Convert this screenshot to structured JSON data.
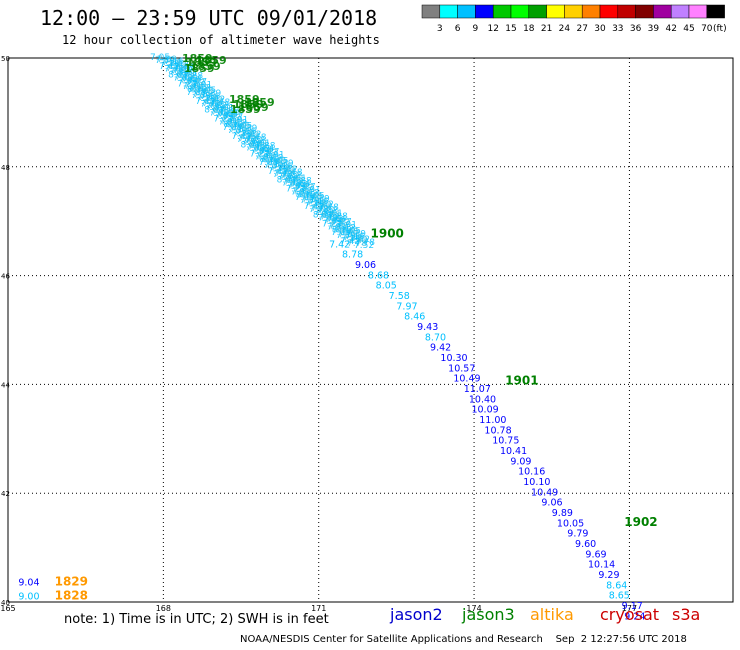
{
  "header": {
    "title": "12:00 — 23:59 UTC 09/01/2018",
    "subtitle": "12 hour collection of altimeter wave heights"
  },
  "legend": {
    "colors": [
      "#808080",
      "#00ffff",
      "#00c0ff",
      "#0000ff",
      "#00c800",
      "#00ff00",
      "#00a000",
      "#ffff00",
      "#ffd000",
      "#ff8000",
      "#ff0000",
      "#c00000",
      "#800000",
      "#a000a0",
      "#c080ff",
      "#ff80ff",
      "#000000"
    ],
    "labels": [
      "3",
      "6",
      "9",
      "12",
      "15",
      "18",
      "21",
      "24",
      "27",
      "30",
      "33",
      "36",
      "39",
      "42",
      "45",
      "70"
    ],
    "unit": "(ft)"
  },
  "notes": {
    "note": "note: 1) Time is in UTC; 2) SWH is in feet",
    "satellites": [
      {
        "name": "jason2",
        "color": "#0000cc"
      },
      {
        "name": "jason3",
        "color": "#008000"
      },
      {
        "name": "altika",
        "color": "#ff9900"
      },
      {
        "name": "cryosat",
        "color": "#cc0000"
      },
      {
        "name": "s3a",
        "color": "#cc0000"
      }
    ],
    "footer": "NOAA/NESDIS Center for Satellite Applications and Research    Sep  2 12:27:56 UTC 2018"
  },
  "chart_data": {
    "type": "scatter",
    "xlim": [
      165,
      179
    ],
    "ylim": [
      40,
      50
    ],
    "xticks": [
      "165",
      "168",
      "171",
      "174",
      "177"
    ],
    "xtick_values": [
      165,
      168,
      171,
      174,
      177
    ],
    "yticks": [
      "40",
      "42",
      "44",
      "46",
      "48",
      "50"
    ],
    "ytick_values": [
      40,
      42,
      44,
      46,
      48,
      50
    ],
    "grid": true,
    "track_times": [
      {
        "label": "1900",
        "x": 172.0,
        "y": 46.7,
        "color": "#008000"
      },
      {
        "label": "1901",
        "x": 174.6,
        "y": 44.0,
        "color": "#008000"
      },
      {
        "label": "1902",
        "x": 176.9,
        "y": 41.4,
        "color": "#008000"
      },
      {
        "label": "1829",
        "x": 165.9,
        "y": 40.3,
        "color": "#ff9900"
      },
      {
        "label": "1828",
        "x": 165.9,
        "y": 40.05,
        "color": "#ff9900"
      }
    ],
    "swh_points": [
      {
        "x": 171.2,
        "y": 46.52,
        "value": "7.42",
        "color": "#00c0ff"
      },
      {
        "x": 171.45,
        "y": 46.33,
        "value": "8.78",
        "color": "#00c0ff"
      },
      {
        "x": 171.7,
        "y": 46.14,
        "value": "9.06",
        "color": "#0000ff"
      },
      {
        "x": 171.95,
        "y": 45.95,
        "value": "8.68",
        "color": "#00c0ff"
      },
      {
        "x": 172.1,
        "y": 45.76,
        "value": "8.05",
        "color": "#00c0ff"
      },
      {
        "x": 172.35,
        "y": 45.57,
        "value": "7.58",
        "color": "#00c0ff"
      },
      {
        "x": 172.5,
        "y": 45.38,
        "value": "7.97",
        "color": "#00c0ff"
      },
      {
        "x": 172.65,
        "y": 45.19,
        "value": "8.46",
        "color": "#00c0ff"
      },
      {
        "x": 172.9,
        "y": 45.0,
        "value": "9.43",
        "color": "#0000ff"
      },
      {
        "x": 173.05,
        "y": 44.81,
        "value": "8.70",
        "color": "#00c0ff"
      },
      {
        "x": 173.15,
        "y": 44.62,
        "value": "9.42",
        "color": "#0000ff"
      },
      {
        "x": 173.35,
        "y": 44.43,
        "value": "10.30",
        "color": "#0000ff"
      },
      {
        "x": 173.5,
        "y": 44.24,
        "value": "10.57",
        "color": "#0000ff"
      },
      {
        "x": 173.6,
        "y": 44.05,
        "value": "10.49",
        "color": "#0000ff"
      },
      {
        "x": 173.8,
        "y": 43.86,
        "value": "11.07",
        "color": "#0000ff"
      },
      {
        "x": 173.9,
        "y": 43.67,
        "value": "10.40",
        "color": "#0000ff"
      },
      {
        "x": 173.95,
        "y": 43.48,
        "value": "10.09",
        "color": "#0000ff"
      },
      {
        "x": 174.1,
        "y": 43.29,
        "value": "11.00",
        "color": "#0000ff"
      },
      {
        "x": 174.2,
        "y": 43.1,
        "value": "10.78",
        "color": "#0000ff"
      },
      {
        "x": 174.35,
        "y": 42.91,
        "value": "10.75",
        "color": "#0000ff"
      },
      {
        "x": 174.5,
        "y": 42.72,
        "value": "10.41",
        "color": "#0000ff"
      },
      {
        "x": 174.7,
        "y": 42.53,
        "value": "9.09",
        "color": "#0000ff"
      },
      {
        "x": 174.85,
        "y": 42.34,
        "value": "10.16",
        "color": "#0000ff"
      },
      {
        "x": 174.95,
        "y": 42.15,
        "value": "10.10",
        "color": "#0000ff"
      },
      {
        "x": 175.1,
        "y": 41.96,
        "value": "10.49",
        "color": "#0000ff"
      },
      {
        "x": 175.3,
        "y": 41.77,
        "value": "9.06",
        "color": "#0000ff"
      },
      {
        "x": 175.5,
        "y": 41.58,
        "value": "9.89",
        "color": "#0000ff"
      },
      {
        "x": 175.6,
        "y": 41.39,
        "value": "10.05",
        "color": "#0000ff"
      },
      {
        "x": 175.8,
        "y": 41.2,
        "value": "9.79",
        "color": "#0000ff"
      },
      {
        "x": 175.95,
        "y": 41.01,
        "value": "9.60",
        "color": "#0000ff"
      },
      {
        "x": 176.15,
        "y": 40.82,
        "value": "9.69",
        "color": "#0000ff"
      },
      {
        "x": 176.2,
        "y": 40.63,
        "value": "10.14",
        "color": "#0000ff"
      },
      {
        "x": 176.4,
        "y": 40.44,
        "value": "9.29",
        "color": "#0000ff"
      },
      {
        "x": 176.55,
        "y": 40.25,
        "value": "8.64",
        "color": "#00c0ff"
      },
      {
        "x": 176.6,
        "y": 40.06,
        "value": "8.65",
        "color": "#00c0ff"
      },
      {
        "x": 176.85,
        "y": 39.87,
        "value": "9.17",
        "color": "#0000ff"
      },
      {
        "x": 176.9,
        "y": 39.68,
        "value": "9.24",
        "color": "#0000ff"
      },
      {
        "x": 165.2,
        "y": 40.3,
        "value": "9.04",
        "color": "#0000ff"
      },
      {
        "x": 165.2,
        "y": 40.05,
        "value": "9.00",
        "color": "#00c0ff"
      }
    ]
  }
}
